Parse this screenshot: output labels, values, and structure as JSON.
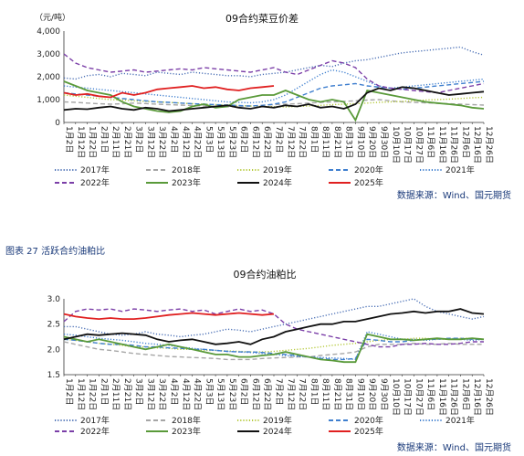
{
  "colors": {
    "2017": "#4a6fb5",
    "2018": "#a6a6a6",
    "2019": "#b5c93a",
    "2020": "#3f7fcf",
    "2021": "#3f7fcf",
    "2022": "#7b3fa8",
    "2023": "#5a9a3a",
    "2024": "#111111",
    "2025": "#e02020",
    "source": "#1a3a7a"
  },
  "legend_styles": {
    "2017": "dotted",
    "2018": "dashed",
    "2019": "dotted",
    "2020": "dashed",
    "2021": "dotted",
    "2022": "dashed",
    "2023": "solid",
    "2024": "solid",
    "2025": "solid"
  },
  "chart_data": [
    {
      "type": "line",
      "title": "09合约菜豆价差",
      "ylabel": "（元/吨）",
      "ylim": [
        0,
        4000
      ],
      "yticks": [
        "0",
        "1,000",
        "2,000",
        "3,000",
        "4,000"
      ],
      "x": [
        "1月2日",
        "1月12日",
        "1月22日",
        "2月1日",
        "2月11日",
        "2月21日",
        "3月2日",
        "3月12日",
        "3月22日",
        "4月1日",
        "4月11日",
        "4月21日",
        "5月1日",
        "5月11日",
        "5月21日",
        "5月31日",
        "6月10日",
        "6月20日",
        "6月30日",
        "7月10日",
        "7月20日",
        "7月30日",
        "8月9日",
        "8月19日",
        "8月29日",
        "9月8日",
        "9月18日",
        "9月28日",
        "10月8日",
        "10月18日",
        "10月28日",
        "11月7日",
        "11月17日",
        "11月27日",
        "12月7日",
        "12月17日",
        "12月27日"
      ],
      "xticks": [
        "1月2日",
        "1月12日",
        "1月22日",
        "2月1日",
        "2月11日",
        "2月21日",
        "3月2日",
        "3月12日",
        "3月22日",
        "4月2日",
        "4月12日",
        "4月22日",
        "5月3日",
        "5月13日",
        "5月23日",
        "6月2日",
        "6月12日",
        "6月22日",
        "7月2日",
        "7月12日",
        "7月22日",
        "8月1日",
        "8月11日",
        "8月21日",
        "8月31日",
        "9月10日",
        "9月20日",
        "9月30日",
        "10月10日",
        "10月17日",
        "10月27日",
        "11月6日",
        "11月16日",
        "11月26日",
        "12月6日",
        "12月16日",
        "12月26日"
      ],
      "series": [
        {
          "name": "2017年",
          "values": [
            1950,
            1900,
            2050,
            2100,
            2000,
            2150,
            2100,
            2050,
            2200,
            2150,
            2100,
            2200,
            2150,
            2100,
            2050,
            2050,
            2000,
            2100,
            2150,
            2200,
            2300,
            2400,
            2500,
            2450,
            2600,
            2700,
            2750,
            2850,
            2950,
            3050,
            3100,
            3150,
            3200,
            3250,
            3300,
            3100,
            2950
          ]
        },
        {
          "name": "2018年",
          "values": [
            900,
            880,
            850,
            820,
            800,
            820,
            850,
            830,
            800,
            780,
            760,
            740,
            720,
            700,
            690,
            700,
            720,
            750,
            780,
            800,
            820,
            850,
            880,
            900,
            920,
            950,
            980,
            1000,
            950,
            900,
            880,
            860,
            840,
            820,
            800,
            780,
            760
          ]
        },
        {
          "name": "2019年",
          "values": [
            1200,
            1150,
            1100,
            1050,
            1000,
            980,
            950,
            920,
            900,
            880,
            850,
            820,
            800,
            780,
            760,
            740,
            720,
            700,
            690,
            680,
            700,
            720,
            750,
            780,
            800,
            820,
            850,
            880,
            900,
            920,
            950,
            980,
            1000,
            1020,
            1050,
            1080,
            1100
          ]
        },
        {
          "name": "2020年",
          "values": [
            1300,
            1250,
            1200,
            1150,
            1100,
            1050,
            1000,
            950,
            900,
            880,
            850,
            820,
            800,
            780,
            760,
            740,
            720,
            750,
            800,
            900,
            1100,
            1300,
            1500,
            1600,
            1650,
            1700,
            1600,
            1550,
            1500,
            1450,
            1500,
            1550,
            1600,
            1650,
            1700,
            1750,
            1800
          ]
        },
        {
          "name": "2021年",
          "values": [
            1600,
            1550,
            1500,
            1450,
            1400,
            1350,
            1300,
            1250,
            1200,
            1150,
            1100,
            1050,
            1000,
            950,
            900,
            880,
            860,
            900,
            1000,
            1200,
            1500,
            1800,
            2100,
            2300,
            2200,
            2000,
            1800,
            1600,
            1500,
            1550,
            1600,
            1650,
            1700,
            1750,
            1800,
            1850,
            1900
          ]
        },
        {
          "name": "2022年",
          "values": [
            3000,
            2600,
            2400,
            2300,
            2200,
            2250,
            2300,
            2200,
            2250,
            2300,
            2350,
            2300,
            2400,
            2350,
            2300,
            2250,
            2200,
            2300,
            2400,
            2200,
            2100,
            2300,
            2500,
            2700,
            2600,
            2400,
            1900,
            1600,
            1500,
            1450,
            1400,
            1350,
            1300,
            1400,
            1500,
            1600,
            1700
          ]
        },
        {
          "name": "2023年",
          "values": [
            1800,
            1600,
            1400,
            1300,
            1200,
            900,
            700,
            600,
            500,
            450,
            500,
            700,
            800,
            650,
            700,
            1000,
            1100,
            1200,
            1200,
            1400,
            1200,
            1000,
            900,
            1000,
            900,
            100,
            1400,
            1300,
            1200,
            1100,
            1000,
            900,
            850,
            800,
            750,
            650,
            600
          ]
        },
        {
          "name": "2024年",
          "values": [
            550,
            600,
            580,
            650,
            700,
            600,
            550,
            650,
            600,
            500,
            550,
            600,
            650,
            700,
            750,
            650,
            600,
            700,
            650,
            750,
            700,
            800,
            650,
            700,
            600,
            800,
            1300,
            1500,
            1400,
            1550,
            1500,
            1400,
            1300,
            1200,
            1250,
            1300,
            1350
          ]
        },
        {
          "name": "2025年",
          "values": [
            1300,
            1200,
            1250,
            1150,
            1100,
            1300,
            1200,
            1300,
            1450,
            1500,
            1550,
            1600,
            1500,
            1550,
            1450,
            1400,
            1500,
            1550,
            1600,
            null,
            null,
            null,
            null,
            null,
            null,
            null,
            null,
            null,
            null,
            null,
            null,
            null,
            null,
            null,
            null,
            null,
            null
          ]
        }
      ]
    },
    {
      "type": "line",
      "title": "09合约油粕比",
      "ylim": [
        1.5,
        3.0
      ],
      "yticks": [
        "1.5",
        "2.0",
        "2.5",
        "3.0"
      ],
      "x": [
        "1月2日",
        "1月12日",
        "1月22日",
        "2月1日",
        "2月11日",
        "2月21日",
        "3月2日",
        "3月12日",
        "3月22日",
        "4月1日",
        "4月11日",
        "4月21日",
        "5月1日",
        "5月11日",
        "5月21日",
        "5月31日",
        "6月10日",
        "6月20日",
        "6月30日",
        "7月10日",
        "7月20日",
        "7月30日",
        "8月9日",
        "8月19日",
        "8月29日",
        "9月8日",
        "9月18日",
        "9月28日",
        "10月8日",
        "10月18日",
        "10月28日",
        "11月7日",
        "11月17日",
        "11月27日",
        "12月7日",
        "12月17日",
        "12月27日"
      ],
      "xticks": [
        "1月2日",
        "1月12日",
        "1月22日",
        "2月1日",
        "2月11日",
        "2月21日",
        "3月2日",
        "3月12日",
        "3月22日",
        "4月2日",
        "4月12日",
        "4月22日",
        "5月3日",
        "5月13日",
        "5月23日",
        "6月2日",
        "6月12日",
        "6月22日",
        "7月2日",
        "7月12日",
        "7月22日",
        "8月1日",
        "8月11日",
        "8月21日",
        "8月31日",
        "9月10日",
        "9月20日",
        "9月30日",
        "10月10日",
        "10月17日",
        "10月27日",
        "11月6日",
        "11月16日",
        "11月26日",
        "12月6日",
        "12月16日",
        "12月26日"
      ],
      "series": [
        {
          "name": "2017年",
          "values": [
            2.45,
            2.45,
            2.4,
            2.35,
            2.3,
            2.28,
            2.3,
            2.35,
            2.3,
            2.28,
            2.25,
            2.28,
            2.3,
            2.35,
            2.4,
            2.38,
            2.35,
            2.4,
            2.45,
            2.5,
            2.55,
            2.6,
            2.65,
            2.7,
            2.75,
            2.8,
            2.85,
            2.85,
            2.9,
            2.95,
            3.0,
            2.85,
            2.75,
            2.7,
            2.65,
            2.6,
            2.65
          ]
        },
        {
          "name": "2018年",
          "values": [
            2.15,
            2.1,
            2.05,
            2.0,
            1.98,
            1.95,
            1.92,
            1.9,
            1.88,
            1.86,
            1.85,
            1.84,
            1.83,
            1.82,
            1.8,
            1.8,
            1.8,
            1.82,
            1.83,
            1.84,
            1.85,
            1.85,
            1.88,
            1.9,
            1.92,
            1.95,
            2.05,
            2.1,
            2.1,
            2.1,
            2.12,
            2.1,
            2.1,
            2.12,
            2.1,
            2.1,
            2.1
          ]
        },
        {
          "name": "2019年",
          "values": [
            2.2,
            2.18,
            2.15,
            2.12,
            2.1,
            2.08,
            2.05,
            2.05,
            2.03,
            2.02,
            2.0,
            2.0,
            1.98,
            1.98,
            1.97,
            1.96,
            1.95,
            1.95,
            1.96,
            1.98,
            2.0,
            2.02,
            2.05,
            2.08,
            2.1,
            2.12,
            2.15,
            2.18,
            2.2,
            2.2,
            2.22,
            2.22,
            2.2,
            2.2,
            2.22,
            2.22,
            2.2
          ]
        },
        {
          "name": "2020年",
          "values": [
            2.2,
            2.18,
            2.15,
            2.12,
            2.1,
            2.1,
            2.08,
            2.05,
            2.05,
            2.03,
            2.02,
            2.0,
            2.0,
            1.98,
            1.96,
            1.95,
            1.95,
            1.94,
            1.92,
            1.9,
            1.88,
            1.85,
            1.82,
            1.8,
            1.8,
            1.82,
            2.2,
            2.18,
            2.15,
            2.15,
            2.18,
            2.2,
            2.2,
            2.22,
            2.22,
            2.2,
            2.2
          ]
        },
        {
          "name": "2021年",
          "values": [
            2.3,
            2.28,
            2.25,
            2.22,
            2.2,
            2.18,
            2.15,
            2.12,
            2.1,
            2.08,
            2.05,
            2.02,
            2.0,
            1.98,
            1.96,
            1.95,
            1.94,
            1.92,
            1.9,
            1.88,
            1.86,
            1.85,
            1.84,
            1.83,
            1.82,
            1.8,
            2.35,
            2.3,
            2.25,
            2.2,
            2.2,
            2.18,
            2.2,
            2.22,
            2.2,
            2.18,
            2.2
          ]
        },
        {
          "name": "2022年",
          "values": [
            2.55,
            2.75,
            2.8,
            2.78,
            2.8,
            2.75,
            2.8,
            2.78,
            2.75,
            2.78,
            2.8,
            2.75,
            2.78,
            2.7,
            2.75,
            2.8,
            2.75,
            2.78,
            2.7,
            2.5,
            2.4,
            2.35,
            2.3,
            2.25,
            2.2,
            2.15,
            2.1,
            2.05,
            2.05,
            2.1,
            2.1,
            2.12,
            2.1,
            2.1,
            2.12,
            2.15,
            2.15
          ]
        },
        {
          "name": "2023年",
          "values": [
            2.25,
            2.2,
            2.15,
            2.2,
            2.15,
            2.1,
            2.05,
            2.0,
            2.05,
            2.1,
            2.05,
            2.0,
            1.95,
            1.9,
            1.9,
            1.85,
            1.85,
            1.88,
            1.9,
            1.95,
            1.9,
            1.85,
            1.8,
            1.78,
            1.75,
            1.75,
            2.3,
            2.25,
            2.2,
            2.2,
            2.18,
            2.2,
            2.22,
            2.2,
            2.2,
            2.22,
            2.2
          ]
        },
        {
          "name": "2024年",
          "values": [
            2.2,
            2.25,
            2.3,
            2.28,
            2.3,
            2.32,
            2.3,
            2.28,
            2.2,
            2.15,
            2.18,
            2.2,
            2.15,
            2.1,
            2.12,
            2.15,
            2.1,
            2.2,
            2.25,
            2.35,
            2.4,
            2.45,
            2.5,
            2.5,
            2.55,
            2.55,
            2.6,
            2.65,
            2.7,
            2.72,
            2.75,
            2.72,
            2.75,
            2.75,
            2.8,
            2.72,
            2.7
          ]
        },
        {
          "name": "2025年",
          "values": [
            2.7,
            2.65,
            2.62,
            2.6,
            2.62,
            2.6,
            2.6,
            2.62,
            2.65,
            2.68,
            2.7,
            2.72,
            2.7,
            2.68,
            2.7,
            2.72,
            2.7,
            2.68,
            2.7,
            null,
            null,
            null,
            null,
            null,
            null,
            null,
            null,
            null,
            null,
            null,
            null,
            null,
            null,
            null,
            null,
            null,
            null
          ]
        }
      ]
    }
  ],
  "legend": {
    "row1": [
      "2017年",
      "2018年",
      "2019年",
      "2020年",
      "2021年"
    ],
    "row2": [
      "2022年",
      "2023年",
      "2024年",
      "2025年"
    ]
  },
  "source_top": "数据来源：Wind、国元期货",
  "source_bottom": "数据来源：Wind、国元期货",
  "caption": "图表 27 活跃合约油粕比"
}
